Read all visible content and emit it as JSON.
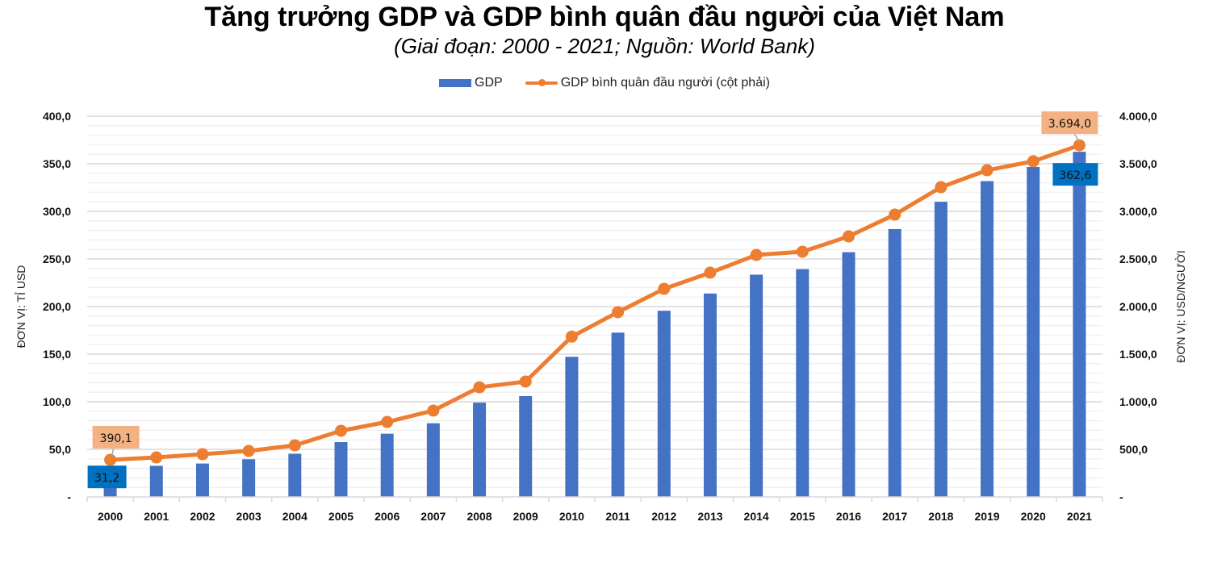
{
  "chart_data": {
    "type": "bar+line",
    "title": "Tăng trưởng GDP và GDP bình quân đầu người của Việt Nam",
    "subtitle": "(Giai đoạn: 2000 - 2021; Nguồn: World Bank)",
    "legend_position": "top-center",
    "categories": [
      "2000",
      "2001",
      "2002",
      "2003",
      "2004",
      "2005",
      "2006",
      "2007",
      "2008",
      "2009",
      "2010",
      "2011",
      "2012",
      "2013",
      "2014",
      "2015",
      "2016",
      "2017",
      "2018",
      "2019",
      "2020",
      "2021"
    ],
    "series": [
      {
        "name": "GDP",
        "type": "bar",
        "axis": "left",
        "color": "#4472C4",
        "values": [
          31.2,
          32.7,
          35.1,
          39.6,
          45.4,
          57.6,
          66.4,
          77.4,
          99.1,
          106.0,
          147.2,
          172.6,
          195.6,
          213.7,
          233.5,
          239.3,
          257.1,
          281.4,
          310.1,
          331.8,
          346.6,
          362.6
        ]
      },
      {
        "name": "GDP bình quân đầu người (cột phải)",
        "type": "line",
        "axis": "right",
        "color": "#ED7D31",
        "values": [
          390.1,
          415,
          449,
          483,
          542,
          695,
          788,
          907,
          1152,
          1212,
          1684,
          1941,
          2186,
          2356,
          2542,
          2576,
          2737,
          2966,
          3254,
          3432,
          3526,
          3694.0
        ]
      }
    ],
    "data_labels": [
      {
        "series": "GDP",
        "category": "2000",
        "text": "31,2",
        "color": "#0070C0"
      },
      {
        "series": "GDP",
        "category": "2021",
        "text": "362,6",
        "color": "#0070C0"
      },
      {
        "series": "GDP bình quân đầu người (cột phải)",
        "category": "2000",
        "text": "390,1",
        "color": "#F4B183"
      },
      {
        "series": "GDP bình quân đầu người (cột phải)",
        "category": "2021",
        "text": "3.694,0",
        "color": "#F4B183"
      }
    ],
    "y_left": {
      "label": "ĐƠN VỊ: TỈ USD",
      "range": [
        0,
        400
      ],
      "ticks": [
        0,
        50,
        100,
        150,
        200,
        250,
        300,
        350,
        400
      ],
      "tick_labels": [
        "-",
        "50,0",
        "100,0",
        "150,0",
        "200,0",
        "250,0",
        "300,0",
        "350,0",
        "400,0"
      ]
    },
    "y_right": {
      "label": "ĐƠN VỊ: USD/NGƯỜI",
      "range": [
        0,
        4000
      ],
      "ticks": [
        0,
        500,
        1000,
        1500,
        2000,
        2500,
        3000,
        3500,
        4000
      ],
      "tick_labels": [
        "-",
        "500,0",
        "1.000,0",
        "1.500,0",
        "2.000,0",
        "2.500,0",
        "3.000,0",
        "3.500,0",
        "4.000,0"
      ]
    },
    "grid": {
      "major": true,
      "minor": true,
      "minor_step_left": 10
    }
  }
}
